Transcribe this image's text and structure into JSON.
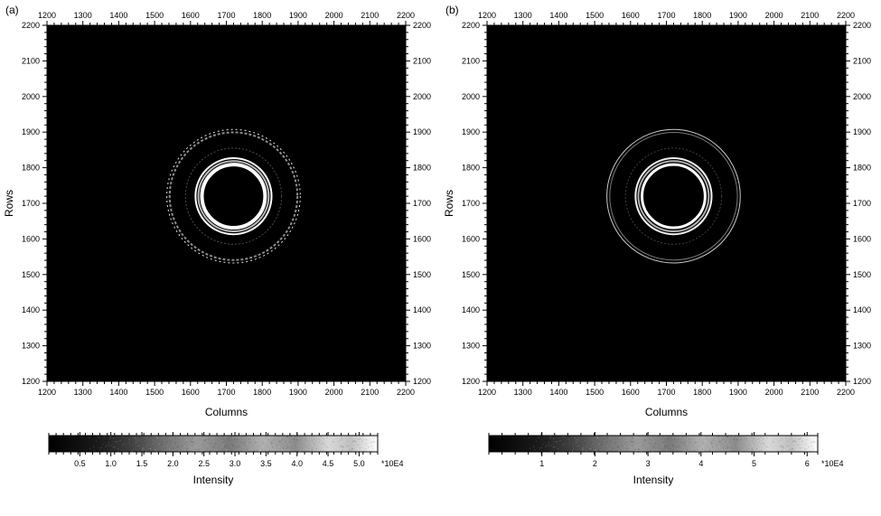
{
  "background_color": "#ffffff",
  "text_color": "#000000",
  "figure": {
    "panels": [
      "a",
      "b"
    ],
    "plot_bg": "#000000",
    "axis_color": "#000000",
    "x_label": "Columns",
    "y_label": "Rows",
    "x_ticks": [
      1200,
      1300,
      1400,
      1500,
      1600,
      1700,
      1800,
      1900,
      2000,
      2100,
      2200
    ],
    "y_ticks": [
      1200,
      1300,
      1400,
      1500,
      1600,
      1700,
      1800,
      1900,
      2000,
      2100,
      2200
    ],
    "xlim": [
      1200,
      2200
    ],
    "ylim": [
      1200,
      2200
    ],
    "tick_fontsize": 9,
    "label_fontsize": 12,
    "minor_tick_count": 5,
    "ring_center": [
      1720,
      1720
    ],
    "rings_a": [
      {
        "r": 88,
        "stroke": "#ffffff",
        "width": 4,
        "opacity": 1.0,
        "dash": ""
      },
      {
        "r": 98,
        "stroke": "#d0d0d0",
        "width": 2,
        "opacity": 0.9,
        "dash": ""
      },
      {
        "r": 106,
        "stroke": "#ffffff",
        "width": 2,
        "opacity": 1.0,
        "dash": ""
      },
      {
        "r": 134,
        "stroke": "#808080",
        "width": 1,
        "opacity": 0.6,
        "dash": "2 2"
      },
      {
        "r": 178,
        "stroke": "#b0b0b0",
        "width": 2,
        "opacity": 0.8,
        "dash": "3 2"
      },
      {
        "r": 186,
        "stroke": "#ffffff",
        "width": 1,
        "opacity": 0.9,
        "dash": "2 3"
      }
    ],
    "rings_b": [
      {
        "r": 88,
        "stroke": "#ffffff",
        "width": 3,
        "opacity": 1.0,
        "dash": ""
      },
      {
        "r": 98,
        "stroke": "#d0d0d0",
        "width": 2,
        "opacity": 0.85,
        "dash": ""
      },
      {
        "r": 106,
        "stroke": "#ffffff",
        "width": 2,
        "opacity": 0.95,
        "dash": ""
      },
      {
        "r": 134,
        "stroke": "#808080",
        "width": 1,
        "opacity": 0.5,
        "dash": "2 2"
      },
      {
        "r": 178,
        "stroke": "#b0b0b0",
        "width": 1,
        "opacity": 0.7,
        "dash": ""
      },
      {
        "r": 186,
        "stroke": "#ffffff",
        "width": 1,
        "opacity": 0.8,
        "dash": ""
      }
    ]
  },
  "colorbar": {
    "label": "Intensity",
    "exponent": "*10E4",
    "ticks_a": [
      0.5,
      1.0,
      1.5,
      2.0,
      2.5,
      3.0,
      3.5,
      4.0,
      4.5,
      5.0
    ],
    "range_a": [
      0,
      5.3
    ],
    "ticks_b": [
      1,
      2,
      3,
      4,
      5,
      6
    ],
    "range_b": [
      0,
      6.2
    ],
    "height": 18,
    "stops": [
      {
        "p": 0.0,
        "c": "#000000"
      },
      {
        "p": 0.15,
        "c": "#1a1a1a"
      },
      {
        "p": 0.25,
        "c": "#404040"
      },
      {
        "p": 0.35,
        "c": "#707070"
      },
      {
        "p": 0.45,
        "c": "#9a9a9a"
      },
      {
        "p": 0.55,
        "c": "#787878"
      },
      {
        "p": 0.65,
        "c": "#b0b0b0"
      },
      {
        "p": 0.75,
        "c": "#8a8a8a"
      },
      {
        "p": 0.85,
        "c": "#d8d8d8"
      },
      {
        "p": 0.92,
        "c": "#c0c0c0"
      },
      {
        "p": 1.0,
        "c": "#ffffff"
      }
    ],
    "noise_overlay": true
  }
}
